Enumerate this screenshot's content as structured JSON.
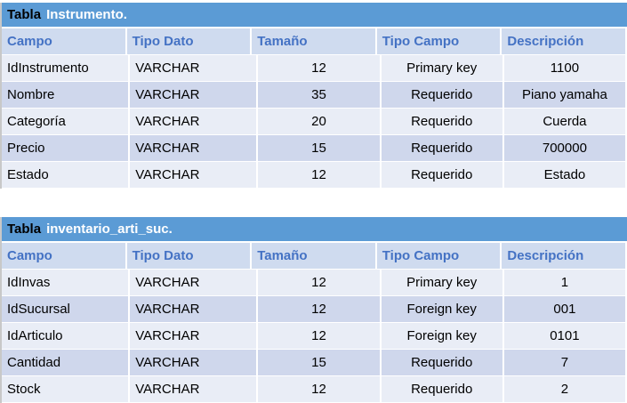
{
  "columns": [
    "Campo",
    "Tipo Dato",
    "Tamaño",
    "Tipo Campo",
    "Descripción"
  ],
  "tables": [
    {
      "prefix": "Tabla",
      "name": "Instrumento.",
      "rows": [
        [
          "IdInstrumento",
          "VARCHAR",
          "12",
          "Primary key",
          "1100"
        ],
        [
          "Nombre",
          "VARCHAR",
          "35",
          "Requerido",
          "Piano yamaha"
        ],
        [
          "Categoría",
          "VARCHAR",
          "20",
          "Requerido",
          "Cuerda"
        ],
        [
          "Precio",
          "VARCHAR",
          "15",
          "Requerido",
          "700000"
        ],
        [
          "Estado",
          "VARCHAR",
          "12",
          "Requerido",
          "Estado"
        ]
      ]
    },
    {
      "prefix": "Tabla",
      "name": "inventario_arti_suc.",
      "rows": [
        [
          "IdInvas",
          "VARCHAR",
          "12",
          "Primary key",
          "1"
        ],
        [
          "IdSucursal",
          "VARCHAR",
          "12",
          "Foreign key",
          "001"
        ],
        [
          "IdArticulo",
          "VARCHAR",
          "12",
          "Foreign key",
          "0101"
        ],
        [
          "Cantidad",
          "VARCHAR",
          "15",
          "Requerido",
          "7"
        ],
        [
          "Stock",
          "VARCHAR",
          "12",
          "Requerido",
          "2"
        ]
      ]
    }
  ],
  "colors": {
    "title_bar": "#5b9bd5",
    "header_text": "#4472c4",
    "header_bg": "#cfdbef",
    "row_light": "#e9edf6",
    "row_dark": "#cfd7ec"
  }
}
